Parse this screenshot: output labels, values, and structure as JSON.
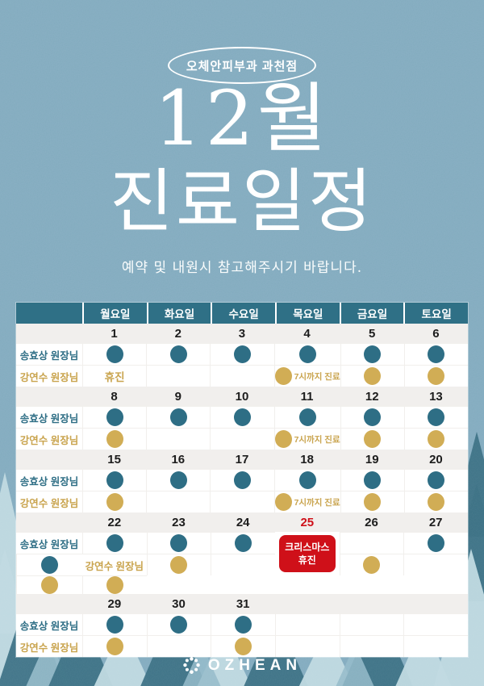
{
  "colors": {
    "background": "#82abbf",
    "header_teal": "#2f7086",
    "doctor_teal": "#2e6e85",
    "doctor_gold": "#c9a44e",
    "gold_dot": "#d1ad55",
    "red": "#cf1019",
    "date_row_bg": "#f1efed",
    "tree_dark": "#3a7084",
    "tree_light": "#bfd9e0",
    "tree_mid": "#93bac9"
  },
  "badge": {
    "label": "오체안피부과 과천점"
  },
  "title": {
    "line1": "12월",
    "line2": "진료일정"
  },
  "subtitle": "예약 및 내원시 참고해주시기 바랍니다.",
  "table": {
    "day_headers": [
      "월요일",
      "화요일",
      "수요일",
      "목요일",
      "금요일",
      "토요일"
    ],
    "doctors": [
      {
        "name": "송효상 원장님",
        "color": "teal"
      },
      {
        "name": "강연수 원장님",
        "color": "gold"
      }
    ],
    "closed_label": "휴진",
    "note_label": "7시까지 진료",
    "christmas": {
      "lines": [
        "크리스마스",
        "휴진"
      ]
    },
    "weeks": [
      {
        "dates": [
          "1",
          "2",
          "3",
          "4",
          "5",
          "6"
        ],
        "rows": [
          [
            "dot",
            "dot",
            "dot",
            "dot",
            "dot",
            "dot"
          ],
          [
            "closed",
            "",
            "",
            "dot-note",
            "dot",
            "dot"
          ]
        ]
      },
      {
        "dates": [
          "8",
          "9",
          "10",
          "11",
          "12",
          "13"
        ],
        "rows": [
          [
            "dot",
            "dot",
            "dot",
            "dot",
            "dot",
            "dot"
          ],
          [
            "dot",
            "",
            "",
            "dot-note",
            "dot",
            "dot"
          ]
        ]
      },
      {
        "dates": [
          "15",
          "16",
          "17",
          "18",
          "19",
          "20"
        ],
        "rows": [
          [
            "dot",
            "dot",
            "dot",
            "dot",
            "dot",
            "dot"
          ],
          [
            "dot",
            "",
            "",
            "dot-note",
            "dot",
            "dot"
          ]
        ]
      },
      {
        "dates": [
          "22",
          "23",
          "24",
          "25",
          "26",
          "27"
        ],
        "red_index": 3,
        "christmas": true,
        "rows": [
          [
            "dot",
            "dot",
            "dot",
            "",
            "dot",
            "dot"
          ],
          [
            "dot",
            "",
            "dot",
            "",
            "dot",
            "dot"
          ]
        ]
      },
      {
        "dates": [
          "29",
          "30",
          "31",
          "",
          "",
          ""
        ],
        "rows": [
          [
            "dot",
            "dot",
            "dot",
            "",
            "",
            ""
          ],
          [
            "dot",
            "",
            "dot",
            "",
            "",
            ""
          ]
        ]
      }
    ]
  },
  "footer": {
    "logo_text": "OZHEAN"
  }
}
